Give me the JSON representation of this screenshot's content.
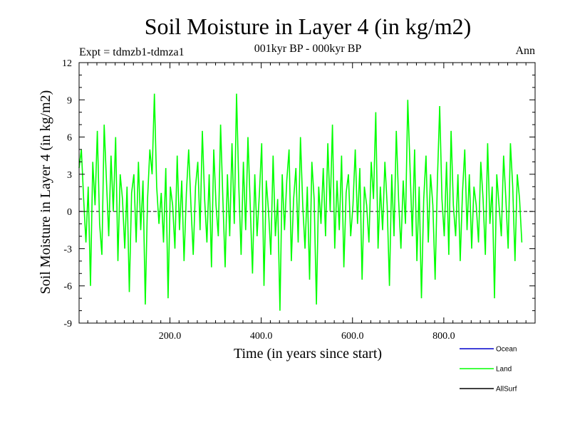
{
  "chart_data": {
    "type": "line",
    "title": "Soil Moisture in Layer 4 (in kg/m2)",
    "subtitle": "001kyr BP - 000kyr BP",
    "experiment_label": "Expt = tdmzb1-tdmza1",
    "season_label": "Ann",
    "xlabel": "Time (in years since start)",
    "ylabel": "Soil Moisture in Layer 4 (in kg/m2)",
    "xlim": [
      1,
      1000
    ],
    "ylim": [
      -9,
      12
    ],
    "x_ticks": [
      200,
      400,
      600,
      800
    ],
    "x_tick_labels": [
      "200.0",
      "400.0",
      "600.0",
      "800.0"
    ],
    "y_ticks": [
      -9,
      -6,
      -3,
      0,
      3,
      6,
      9,
      12
    ],
    "y_tick_labels": [
      "-9",
      "-6",
      "-3",
      "0",
      "3",
      "6",
      "9",
      "12"
    ],
    "zero_line": true,
    "legend_position": "bottom-right",
    "series": [
      {
        "name": "Ocean",
        "color": "#0000cc",
        "x": [],
        "values": []
      },
      {
        "name": "Land",
        "color": "#00ff00",
        "x_start": 1,
        "x_step": 5,
        "values": [
          3.5,
          5.0,
          1.0,
          -2.5,
          2.0,
          -6.0,
          4.0,
          0.5,
          6.5,
          -1.0,
          -3.5,
          7.0,
          2.5,
          -2.0,
          4.5,
          0.0,
          6.0,
          -4.0,
          3.0,
          1.0,
          -3.0,
          2.0,
          -6.5,
          1.5,
          3.0,
          -2.5,
          4.0,
          -1.5,
          2.5,
          -7.5,
          1.0,
          5.0,
          3.0,
          9.5,
          2.0,
          -1.0,
          1.5,
          -2.5,
          3.5,
          -7.0,
          2.0,
          0.5,
          -3.0,
          4.5,
          -1.5,
          2.5,
          -4.0,
          1.5,
          5.0,
          0.5,
          -3.5,
          2.0,
          4.0,
          -1.5,
          6.5,
          1.0,
          -2.5,
          3.0,
          -4.5,
          5.0,
          0.5,
          -2.0,
          7.0,
          1.0,
          -4.5,
          3.0,
          -2.0,
          5.5,
          -1.0,
          9.5,
          2.0,
          -3.5,
          4.0,
          -1.5,
          6.0,
          0.5,
          -5.0,
          3.0,
          -2.0,
          1.5,
          5.5,
          -6.0,
          2.5,
          0.0,
          -3.5,
          4.5,
          -2.0,
          1.0,
          -8.0,
          3.0,
          -1.5,
          2.5,
          5.0,
          -4.0,
          1.0,
          3.5,
          -2.5,
          6.0,
          0.5,
          -3.0,
          2.0,
          -5.5,
          4.0,
          1.0,
          -7.5,
          2.0,
          -1.0,
          3.5,
          -2.0,
          5.5,
          0.0,
          7.0,
          -3.0,
          2.5,
          -1.5,
          4.5,
          -4.5,
          1.5,
          3.0,
          -2.0,
          0.5,
          5.0,
          -1.0,
          3.5,
          -5.5,
          2.0,
          0.5,
          -2.5,
          4.0,
          1.0,
          8.0,
          -3.0,
          2.0,
          -1.5,
          4.0,
          0.5,
          -6.0,
          3.0,
          -2.0,
          6.5,
          1.0,
          -3.0,
          2.5,
          -1.0,
          9.0,
          3.5,
          -2.0,
          5.0,
          -4.0,
          2.0,
          -7.0,
          1.0,
          4.5,
          -2.5,
          3.0,
          0.5,
          -5.5,
          2.5,
          8.5,
          1.0,
          -2.0,
          4.0,
          -3.5,
          6.5,
          0.5,
          -2.0,
          3.0,
          -4.0,
          1.5,
          5.0,
          -1.5,
          3.0,
          -3.0,
          2.0,
          0.5,
          -2.5,
          4.0,
          1.0,
          -3.5,
          5.5,
          -1.0,
          2.0,
          -7.0,
          3.0,
          0.5,
          -2.0,
          4.5,
          1.0,
          -3.0,
          5.5,
          2.0,
          -4.0,
          3.0,
          1.0,
          -2.5
        ]
      },
      {
        "name": "AllSurf",
        "color": "#000000",
        "x": [],
        "values": []
      }
    ]
  }
}
